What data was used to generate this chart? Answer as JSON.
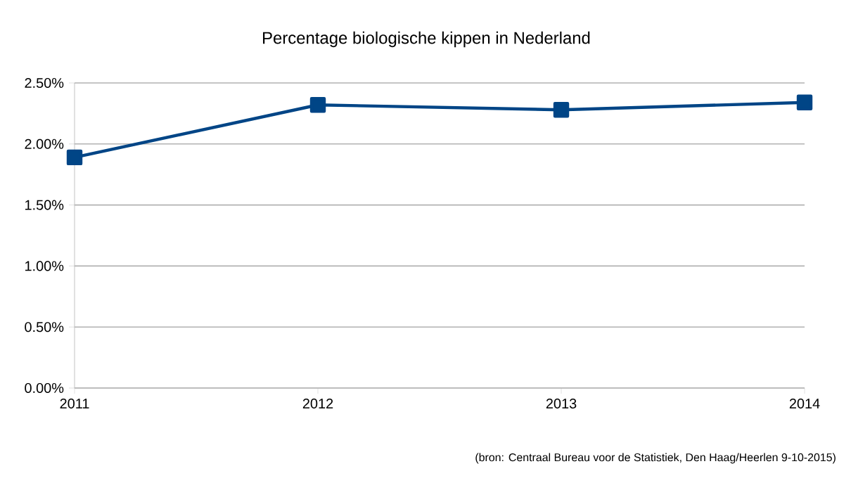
{
  "chart_data": {
    "type": "line",
    "title": "Percentage biologische kippen in Nederland",
    "categories": [
      "2011",
      "2012",
      "2013",
      "2014"
    ],
    "series": [
      {
        "color": "#004586",
        "values": [
          1.89,
          2.32,
          2.28,
          2.34
        ]
      }
    ],
    "ylim": [
      0,
      2.5
    ],
    "yticks": [
      {
        "value": 0,
        "label": "0.00%"
      },
      {
        "value": 0.5,
        "label": "0.50%"
      },
      {
        "value": 1.0,
        "label": "1.00%"
      },
      {
        "value": 1.5,
        "label": "1.50%"
      },
      {
        "value": 2.0,
        "label": "2.00%"
      },
      {
        "value": 2.5,
        "label": "2.50%"
      }
    ],
    "grid": "y",
    "marker": "square",
    "line_style": "solid",
    "annotations": [
      "(bron: Centraal Bureau voor de Statistiek, Den Haag/Heerlen 9-10-2015)"
    ]
  }
}
